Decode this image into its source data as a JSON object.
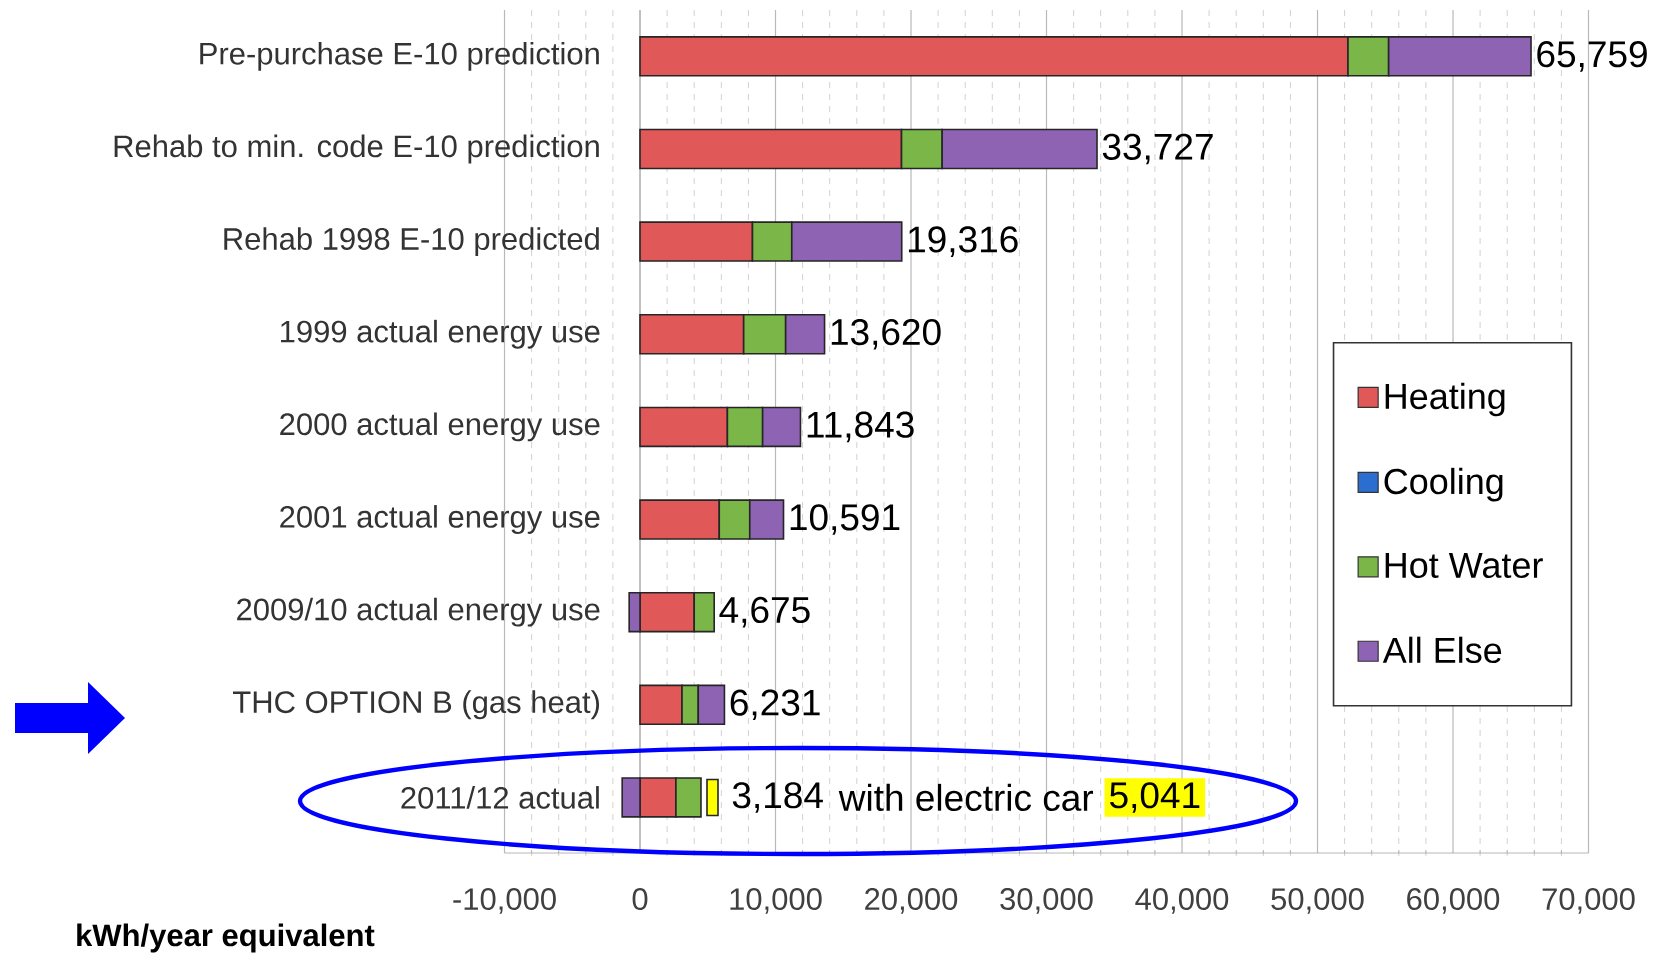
{
  "chart_data": {
    "type": "bar",
    "orientation": "horizontal",
    "stacked": true,
    "categories": [
      "Pre-purchase E-10 prediction",
      "Rehab to min. code E-10 prediction",
      "Rehab 1998 E-10 predicted",
      "1999 actual energy use",
      "2000 actual energy use",
      "2001  actual energy use",
      "2009/10  actual energy use",
      "THC OPTION B (gas heat)",
      "2011/12 actual"
    ],
    "series": [
      {
        "name": "Heating",
        "color": "#e05858",
        "values": [
          52250,
          19300,
          8300,
          7650,
          6450,
          5850,
          4000,
          3100,
          2650
        ]
      },
      {
        "name": "Cooling",
        "color": "#2a6fd0",
        "values": [
          0,
          0,
          0,
          0,
          0,
          0,
          0,
          0,
          0
        ]
      },
      {
        "name": "Hot Water",
        "color": "#7ab648",
        "values": [
          3000,
          3000,
          2900,
          3100,
          2600,
          2250,
          1475,
          1200,
          1850
        ]
      },
      {
        "name": "All Else",
        "color": "#8e63b4",
        "values": [
          10509,
          11427,
          8116,
          2870,
          2793,
          2491,
          -800,
          1931,
          -1316
        ]
      }
    ],
    "totals": [
      "65,759",
      "33,727",
      "19,316",
      "13,620",
      "11,843",
      "10,591",
      "4,675",
      "6,231",
      "3,184"
    ],
    "annotations": [
      "with electric car",
      "5,041"
    ],
    "xlabel": "kWh/year equivalent",
    "xlim": [
      -10000,
      70000
    ],
    "xticks": [
      {
        "value": -10000,
        "label": "-10,000"
      },
      0,
      {
        "value": 10000,
        "label": "10,000"
      },
      {
        "value": 20000,
        "label": "20,000"
      },
      {
        "value": 30000,
        "label": "30,000"
      },
      {
        "value": 40000,
        "label": "40,000"
      },
      {
        "value": 50000,
        "label": "50,000"
      },
      {
        "value": 60000,
        "label": "60,000"
      },
      {
        "value": 70000,
        "label": "70,000"
      }
    ],
    "grid": "x",
    "legend": "right"
  }
}
